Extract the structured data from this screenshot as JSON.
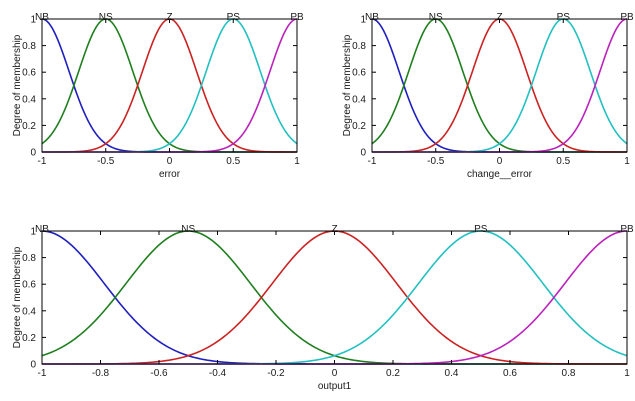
{
  "chart_data": [
    {
      "type": "line",
      "xlabel": "error",
      "ylabel": "Degree of membership",
      "xlim": [
        -1,
        1
      ],
      "ylim": [
        0,
        1
      ],
      "xticks": [
        -1,
        -0.5,
        0,
        0.5,
        1
      ],
      "xtick_labels": [
        "-1",
        "-0.5",
        "0",
        "0.5",
        "1"
      ],
      "yticks": [
        0,
        0.2,
        0.4,
        0.6,
        0.8,
        1
      ],
      "ytick_labels": [
        "0",
        "0.2",
        "0.4",
        "0.6",
        "0.8",
        "1"
      ],
      "grid": false,
      "membership_functions": [
        {
          "name": "NB",
          "shape": "gaussian",
          "center": -1,
          "sigma": 0.2123,
          "color": "#1f1fbf"
        },
        {
          "name": "NS",
          "shape": "gaussian",
          "center": -0.5,
          "sigma": 0.2123,
          "color": "#1f7f1f"
        },
        {
          "name": "Z",
          "shape": "gaussian",
          "center": 0,
          "sigma": 0.2123,
          "color": "#cc2222"
        },
        {
          "name": "PS",
          "shape": "gaussian",
          "center": 0.5,
          "sigma": 0.2123,
          "color": "#22c0c0"
        },
        {
          "name": "PB",
          "shape": "gaussian",
          "center": 1,
          "sigma": 0.2123,
          "color": "#bb22bb"
        }
      ]
    },
    {
      "type": "line",
      "xlabel": "change__error",
      "ylabel": "Degree of membership",
      "xlim": [
        -1,
        1
      ],
      "ylim": [
        0,
        1
      ],
      "xticks": [
        -1,
        -0.5,
        0,
        0.5,
        1
      ],
      "xtick_labels": [
        "-1",
        "-0.5",
        "0",
        "0.5",
        "1"
      ],
      "yticks": [
        0,
        0.2,
        0.4,
        0.6,
        0.8,
        1
      ],
      "ytick_labels": [
        "0",
        "0.2",
        "0.4",
        "0.6",
        "0.8",
        "1"
      ],
      "grid": false,
      "membership_functions": [
        {
          "name": "NB",
          "shape": "gaussian",
          "center": -1,
          "sigma": 0.2123,
          "color": "#1f1fbf"
        },
        {
          "name": "NS",
          "shape": "gaussian",
          "center": -0.5,
          "sigma": 0.2123,
          "color": "#1f7f1f"
        },
        {
          "name": "Z",
          "shape": "gaussian",
          "center": 0,
          "sigma": 0.2123,
          "color": "#cc2222"
        },
        {
          "name": "PS",
          "shape": "gaussian",
          "center": 0.5,
          "sigma": 0.2123,
          "color": "#22c0c0"
        },
        {
          "name": "PB",
          "shape": "gaussian",
          "center": 1,
          "sigma": 0.2123,
          "color": "#bb22bb"
        }
      ]
    },
    {
      "type": "line",
      "xlabel": "output1",
      "ylabel": "Degree of membership",
      "xlim": [
        -1,
        1
      ],
      "ylim": [
        0,
        1
      ],
      "xticks": [
        -1,
        -0.8,
        -0.6,
        -0.4,
        -0.2,
        0,
        0.2,
        0.4,
        0.6,
        0.8,
        1
      ],
      "xtick_labels": [
        "-1",
        "-0.8",
        "-0.6",
        "-0.4",
        "-0.2",
        "0",
        "0.2",
        "0.4",
        "0.6",
        "0.8",
        "1"
      ],
      "yticks": [
        0,
        0.2,
        0.4,
        0.6,
        0.8,
        1
      ],
      "ytick_labels": [
        "0",
        "0.2",
        "0.4",
        "0.6",
        "0.8",
        "1"
      ],
      "grid": false,
      "membership_functions": [
        {
          "name": "NB",
          "shape": "gaussian",
          "center": -1,
          "sigma": 0.2123,
          "color": "#1f1fbf"
        },
        {
          "name": "NS",
          "shape": "gaussian",
          "center": -0.5,
          "sigma": 0.2123,
          "color": "#1f7f1f"
        },
        {
          "name": "Z",
          "shape": "gaussian",
          "center": 0,
          "sigma": 0.2123,
          "color": "#cc2222"
        },
        {
          "name": "PS",
          "shape": "gaussian",
          "center": 0.5,
          "sigma": 0.2123,
          "color": "#22c0c0"
        },
        {
          "name": "PB",
          "shape": "gaussian",
          "center": 1,
          "sigma": 0.2123,
          "color": "#bb22bb"
        }
      ]
    }
  ]
}
